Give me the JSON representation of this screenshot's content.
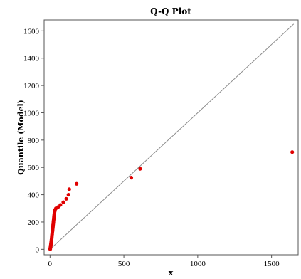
{
  "chart_data": {
    "type": "scatter",
    "title": "Q-Q Plot",
    "xlabel": "x",
    "ylabel": "Quantile (Model)",
    "xlim": [
      -40,
      1680
    ],
    "ylim": [
      -40,
      1680
    ],
    "x_ticks": [
      0,
      500,
      1000,
      1500
    ],
    "y_ticks": [
      0,
      200,
      400,
      600,
      800,
      1000,
      1200,
      1400,
      1600
    ],
    "grid": false,
    "reference_line": {
      "from": [
        0,
        0
      ],
      "to": [
        1650,
        1650
      ],
      "color": "#8c8c8c"
    },
    "series": [
      {
        "color": "#e00000",
        "points": [
          [
            1,
            1
          ],
          [
            2,
            8
          ],
          [
            3,
            15
          ],
          [
            4,
            22
          ],
          [
            5,
            30
          ],
          [
            6,
            38
          ],
          [
            7,
            46
          ],
          [
            8,
            54
          ],
          [
            9,
            62
          ],
          [
            10,
            70
          ],
          [
            11,
            80
          ],
          [
            12,
            90
          ],
          [
            13,
            100
          ],
          [
            14,
            110
          ],
          [
            15,
            120
          ],
          [
            16,
            130
          ],
          [
            17,
            140
          ],
          [
            18,
            150
          ],
          [
            19,
            160
          ],
          [
            20,
            170
          ],
          [
            21,
            180
          ],
          [
            22,
            190
          ],
          [
            23,
            200
          ],
          [
            24,
            210
          ],
          [
            25,
            220
          ],
          [
            26,
            230
          ],
          [
            27,
            240
          ],
          [
            28,
            250
          ],
          [
            29,
            260
          ],
          [
            30,
            270
          ],
          [
            32,
            280
          ],
          [
            34,
            290
          ],
          [
            40,
            300
          ],
          [
            55,
            310
          ],
          [
            70,
            325
          ],
          [
            90,
            345
          ],
          [
            110,
            370
          ],
          [
            125,
            400
          ],
          [
            130,
            440
          ],
          [
            180,
            480
          ],
          [
            550,
            525
          ],
          [
            610,
            590
          ],
          [
            1640,
            712
          ]
        ]
      }
    ]
  }
}
